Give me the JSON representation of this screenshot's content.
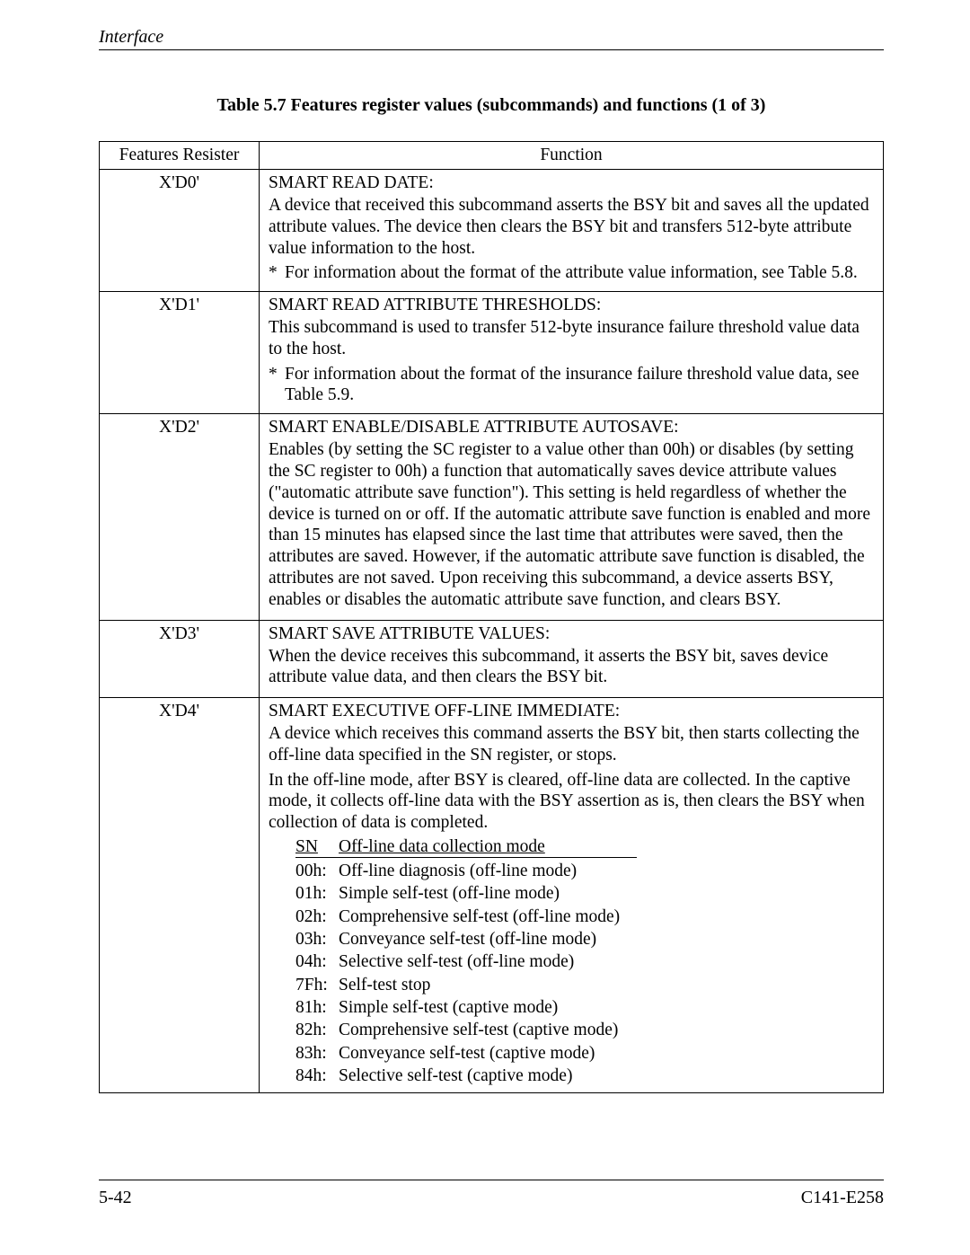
{
  "header": {
    "section": "Interface"
  },
  "title": "Table 5.7  Features register values (subcommands) and functions (1 of 3)",
  "columns": {
    "features": "Features Resister",
    "function": "Function"
  },
  "rows": [
    {
      "reg": "X'D0'",
      "title": "SMART READ DATE:",
      "para1": "A device that received this subcommand asserts the BSY bit and saves all the updated attribute values.  The device then clears the BSY bit and transfers 512-byte attribute value information to the host.",
      "bullet": "For information about the format of the attribute value information, see Table 5.8."
    },
    {
      "reg": "X'D1'",
      "title": "SMART READ ATTRIBUTE THRESHOLDS:",
      "para1": "This subcommand is used to transfer 512-byte insurance failure threshold value data to the host.",
      "bullet": "For information about the format of the insurance failure threshold value data, see Table 5.9."
    },
    {
      "reg": "X'D2'",
      "title": "SMART ENABLE/DISABLE ATTRIBUTE AUTOSAVE:",
      "para1": "Enables (by setting the SC register to a value other than 00h) or disables (by setting the SC register to 00h) a function that automatically saves device attribute values (\"automatic attribute save function\").  This setting is held regardless of whether the device is turned on or off.  If the automatic attribute save function is enabled and more than 15 minutes has elapsed since the last time that attributes were saved, then the attributes are saved.  However, if the automatic attribute save function is disabled, the attributes are not saved.  Upon receiving this subcommand, a device asserts BSY, enables or disables the automatic attribute save function, and clears BSY."
    },
    {
      "reg": "X'D3'",
      "title": "SMART SAVE ATTRIBUTE VALUES:",
      "para1": "When the device receives this subcommand, it asserts the BSY bit, saves device attribute value data, and then clears the BSY bit."
    },
    {
      "reg": "X'D4'",
      "title": "SMART EXECUTIVE OFF-LINE IMMEDIATE:",
      "para1": "A device which receives this command asserts the BSY bit, then starts collecting the off-line data specified in the SN register, or stops.",
      "para2": "In the off-line mode, after BSY is cleared, off-line data are collected. In the captive mode, it collects off-line data with the BSY assertion as is, then clears the BSY when collection of data is completed.",
      "snHeader": {
        "c1": "SN",
        "c2": "Off-line data collection mode"
      },
      "snRows": [
        {
          "c1": "00h:",
          "c2": "Off-line diagnosis (off-line mode)"
        },
        {
          "c1": "01h:",
          "c2": "Simple self-test (off-line mode)"
        },
        {
          "c1": "02h:",
          "c2": "Comprehensive self-test (off-line mode)"
        },
        {
          "c1": "03h:",
          "c2": "Conveyance self-test (off-line mode)"
        },
        {
          "c1": "04h:",
          "c2": "Selective self-test (off-line mode)"
        },
        {
          "c1": "7Fh:",
          "c2": "Self-test stop"
        },
        {
          "c1": "81h:",
          "c2": "Simple self-test (captive mode)"
        },
        {
          "c1": "82h:",
          "c2": "Comprehensive self-test (captive mode)"
        },
        {
          "c1": "83h:",
          "c2": "Conveyance self-test (captive mode)"
        },
        {
          "c1": "84h:",
          "c2": "Selective self-test (captive mode)"
        }
      ]
    }
  ],
  "footer": {
    "left": "5-42",
    "right": "C141-E258"
  }
}
